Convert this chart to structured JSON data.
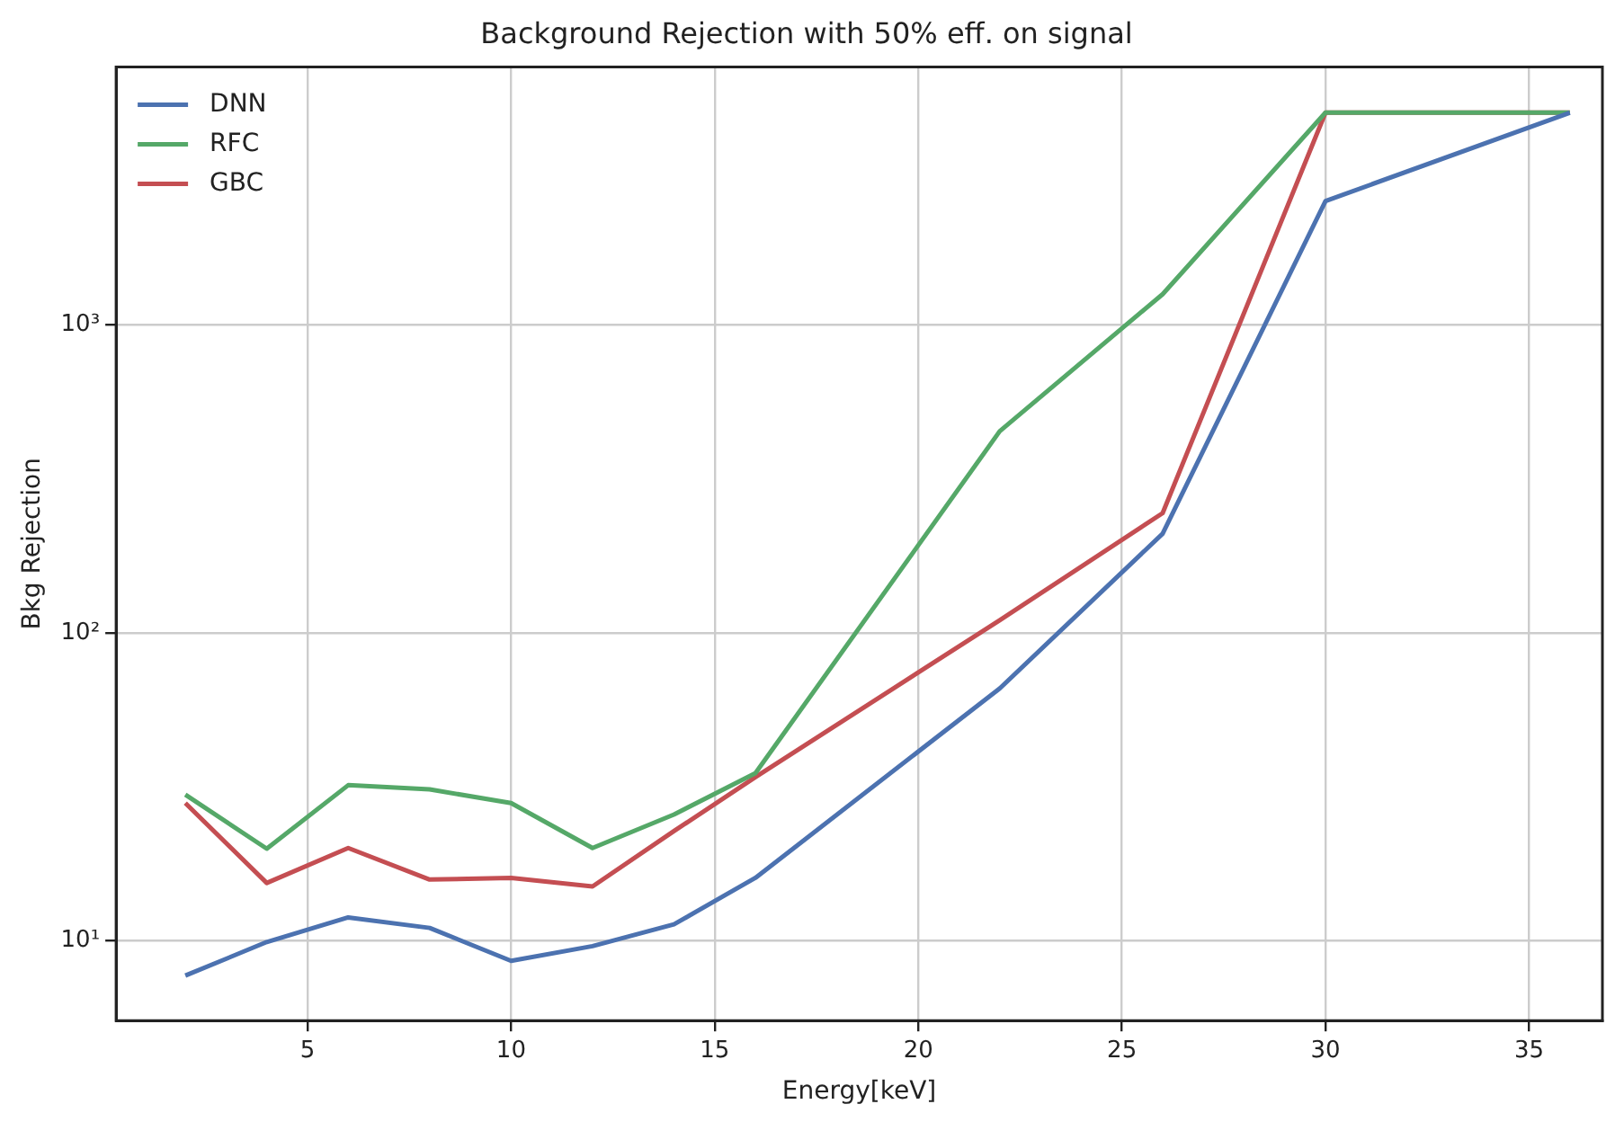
{
  "chart_data": {
    "type": "line",
    "title": "Background Rejection with 50% eff. on signal",
    "xlabel": "Energy[keV]",
    "ylabel": "Bkg Rejection",
    "x": [
      2,
      4,
      6,
      8,
      10,
      12,
      14,
      16,
      22,
      26,
      30,
      36
    ],
    "series": [
      {
        "name": "DNN",
        "color": "#4c72b0",
        "values": [
          7.7,
          9.9,
          11.9,
          11,
          8.6,
          9.6,
          11.3,
          16,
          66,
          210,
          2530,
          4900
        ]
      },
      {
        "name": "RFC",
        "color": "#55a868",
        "values": [
          29.8,
          19.9,
          32,
          31,
          28,
          20,
          25.7,
          35,
          452,
          1260,
          4900,
          4900
        ]
      },
      {
        "name": "GBC",
        "color": "#c44e52",
        "values": [
          28,
          15.4,
          20,
          15.8,
          16,
          15,
          22.7,
          34,
          110,
          245,
          4900,
          4900
        ]
      }
    ],
    "xlim": [
      0.3,
      36.8
    ],
    "xticks": [
      5,
      10,
      15,
      20,
      25,
      30,
      35
    ],
    "ylim": [
      5.5,
      6900
    ],
    "yticks": [
      {
        "value": 10,
        "label": "10¹"
      },
      {
        "value": 100,
        "label": "10²"
      },
      {
        "value": 1000,
        "label": "10³"
      }
    ],
    "log": "y",
    "grid": true,
    "legend": "top left",
    "marker": "none",
    "line_style": "solid"
  }
}
